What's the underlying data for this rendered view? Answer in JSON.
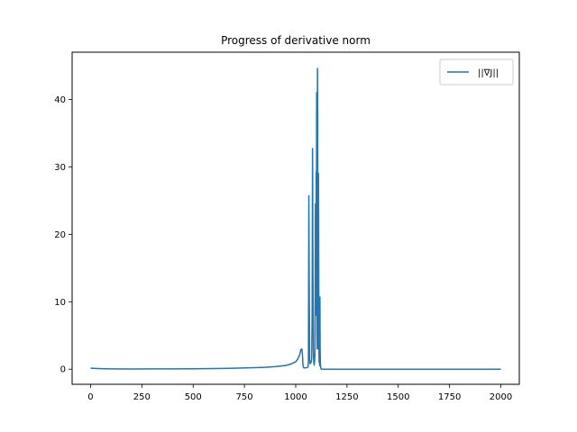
{
  "chart_data": {
    "type": "line",
    "title": "Progress of derivative norm",
    "xlabel": "",
    "ylabel": "",
    "xlim": [
      -90,
      2090
    ],
    "ylim": [
      -2.24,
      47.0
    ],
    "xticks": [
      "0",
      "250",
      "500",
      "750",
      "1000",
      "1250",
      "1500",
      "1750",
      "2000"
    ],
    "yticks": [
      "0",
      "10",
      "20",
      "30",
      "40"
    ],
    "legend_position": "top-right",
    "grid": false,
    "series": [
      {
        "name": "||∇J||",
        "color": "#1f77b4",
        "x": [
          0,
          50,
          100,
          200,
          300,
          400,
          500,
          600,
          700,
          800,
          850,
          900,
          950,
          980,
          1000,
          1010,
          1020,
          1025,
          1030,
          1033,
          1035,
          1037,
          1040,
          1045,
          1050,
          1055,
          1060,
          1062,
          1064,
          1066,
          1068,
          1070,
          1075,
          1078,
          1080,
          1082,
          1084,
          1086,
          1088,
          1090,
          1092,
          1094,
          1096,
          1098,
          1100,
          1101,
          1102,
          1103,
          1104,
          1105,
          1106,
          1107,
          1108,
          1109,
          1110,
          1111,
          1112,
          1113,
          1114,
          1115,
          1116,
          1117,
          1118,
          1119,
          1120,
          1121,
          1122,
          1123,
          1124,
          1125,
          1126,
          1128,
          1130,
          1135,
          1140,
          1200,
          1300,
          1500,
          1750,
          2000
        ],
        "y": [
          0.15,
          0.08,
          0.04,
          0.03,
          0.04,
          0.05,
          0.07,
          0.1,
          0.14,
          0.22,
          0.28,
          0.38,
          0.55,
          0.8,
          1.1,
          1.5,
          2.2,
          2.9,
          3.0,
          2.0,
          0.8,
          0.3,
          0.2,
          0.2,
          0.2,
          0.25,
          0.3,
          1.2,
          25.7,
          12.0,
          1.5,
          0.8,
          1.0,
          1.6,
          8.0,
          32.7,
          15.0,
          3.0,
          1.0,
          0.6,
          1.2,
          2.5,
          24.5,
          9.0,
          29.2,
          8.0,
          41.0,
          22.0,
          5.0,
          3.0,
          44.6,
          38.0,
          12.0,
          3.0,
          9.0,
          29.0,
          18.0,
          4.0,
          1.0,
          8.0,
          2.0,
          0.5,
          10.7,
          3.0,
          1.0,
          0.6,
          0.3,
          0.1,
          0.05,
          0.02,
          0.01,
          0.01,
          0.005,
          0.0,
          0.0,
          0.0,
          0.0,
          0.0,
          0.0,
          0.0
        ]
      }
    ]
  }
}
